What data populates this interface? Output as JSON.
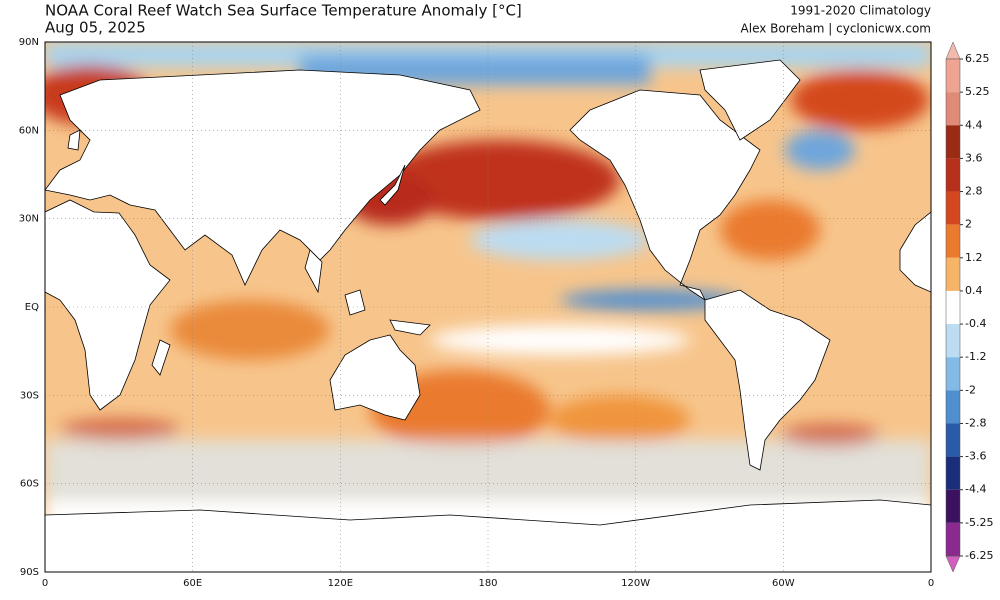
{
  "header": {
    "title": "NOAA Coral Reef Watch Sea Surface Temperature Anomaly [°C]",
    "date": "Aug 05, 2025",
    "climatology": "1991-2020 Climatology",
    "credit": "Alex Boreham | cyclonicwx.com"
  },
  "map": {
    "lat_labels": [
      "90N",
      "60N",
      "30N",
      "EQ",
      "30S",
      "60S",
      "90S"
    ],
    "lon_labels": [
      "0",
      "60E",
      "120E",
      "180",
      "120W",
      "60W",
      "0"
    ]
  },
  "colorbar": {
    "ticks": [
      6.25,
      5.25,
      4.4,
      3.6,
      2.8,
      2,
      1.2,
      0.4,
      -0.4,
      -1.2,
      -2,
      -2.8,
      -3.6,
      -4.4,
      -5.25,
      -6.25
    ],
    "colors": [
      "#f3b9ac",
      "#eea493",
      "#e08a78",
      "#9a2c16",
      "#b8301c",
      "#d4481f",
      "#ea7a2e",
      "#f6b466",
      "#ffffff",
      "#bcdcf2",
      "#84bbe6",
      "#4f8fd0",
      "#2a5aa8",
      "#1a2e7a",
      "#3c1260",
      "#8a2a8e",
      "#d260c0"
    ]
  }
}
